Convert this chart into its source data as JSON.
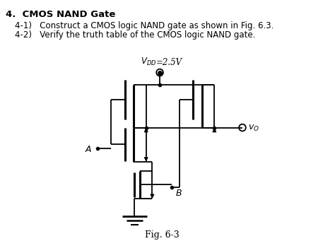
{
  "title_bold": "4.  CMOS NAND Gate",
  "line1": "4-1)   Construct a CMOS logic NAND gate as shown in Fig. 6.3.",
  "line2": "4-2)   Verify the truth table of the CMOS logic NAND gate.",
  "vdd_label": "$V_{DD}$",
  "vdd_value": "=2.5V",
  "vo_label": "$v_O$",
  "a_label": "$A$",
  "b_label": "$B$",
  "fig_label": "Fig. 6-3",
  "bg_color": "#ffffff",
  "line_color": "#000000",
  "text_color": "#000000"
}
